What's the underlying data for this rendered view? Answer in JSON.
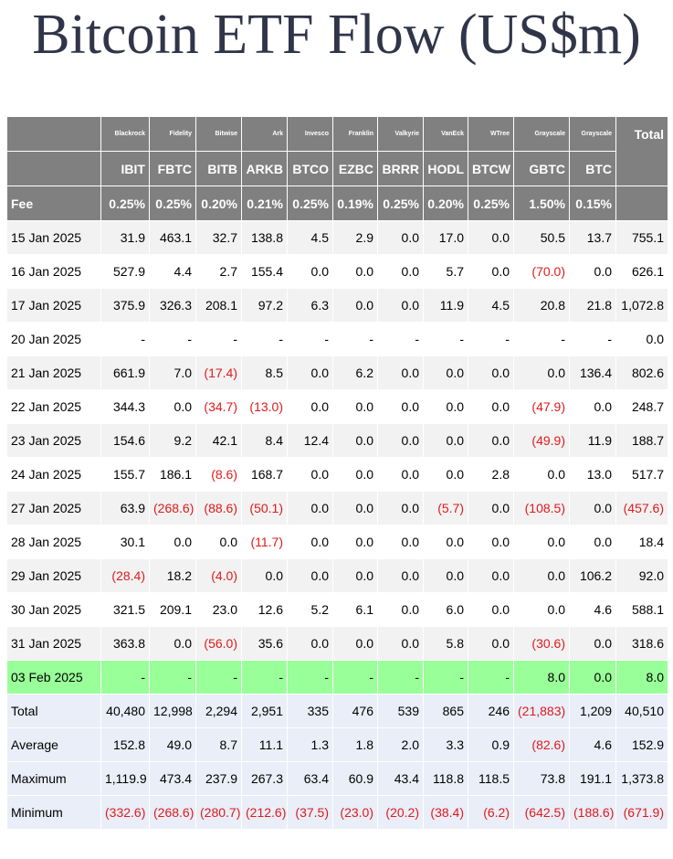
{
  "title": "Bitcoin ETF Flow (US$m)",
  "table": {
    "issuers": [
      "Blackrock",
      "Fidelity",
      "Bitwise",
      "Ark",
      "Invesco",
      "Franklin",
      "Valkyrie",
      "VanEck",
      "WTree",
      "Grayscale",
      "Grayscale"
    ],
    "total_label": "Total",
    "tickers": [
      "IBIT",
      "FBTC",
      "BITB",
      "ARKB",
      "BTCO",
      "EZBC",
      "BRRR",
      "HODL",
      "BTCW",
      "GBTC",
      "BTC"
    ],
    "fee_label": "Fee",
    "fees": [
      "0.25%",
      "0.25%",
      "0.20%",
      "0.21%",
      "0.25%",
      "0.19%",
      "0.25%",
      "0.20%",
      "0.25%",
      "1.50%",
      "0.15%"
    ],
    "rows": [
      [
        "15 Jan 2025",
        "31.9",
        "463.1",
        "32.7",
        "138.8",
        "4.5",
        "2.9",
        "0.0",
        "17.0",
        "0.0",
        "50.5",
        "13.7",
        "755.1"
      ],
      [
        "16 Jan 2025",
        "527.9",
        "4.4",
        "2.7",
        "155.4",
        "0.0",
        "0.0",
        "0.0",
        "5.7",
        "0.0",
        "(70.0)",
        "0.0",
        "626.1"
      ],
      [
        "17 Jan 2025",
        "375.9",
        "326.3",
        "208.1",
        "97.2",
        "6.3",
        "0.0",
        "0.0",
        "11.9",
        "4.5",
        "20.8",
        "21.8",
        "1,072.8"
      ],
      [
        "20 Jan 2025",
        "-",
        "-",
        "-",
        "-",
        "-",
        "-",
        "-",
        "-",
        "-",
        "-",
        "-",
        "0.0"
      ],
      [
        "21 Jan 2025",
        "661.9",
        "7.0",
        "(17.4)",
        "8.5",
        "0.0",
        "6.2",
        "0.0",
        "0.0",
        "0.0",
        "0.0",
        "136.4",
        "802.6"
      ],
      [
        "22 Jan 2025",
        "344.3",
        "0.0",
        "(34.7)",
        "(13.0)",
        "0.0",
        "0.0",
        "0.0",
        "0.0",
        "0.0",
        "(47.9)",
        "0.0",
        "248.7"
      ],
      [
        "23 Jan 2025",
        "154.6",
        "9.2",
        "42.1",
        "8.4",
        "12.4",
        "0.0",
        "0.0",
        "0.0",
        "0.0",
        "(49.9)",
        "11.9",
        "188.7"
      ],
      [
        "24 Jan 2025",
        "155.7",
        "186.1",
        "(8.6)",
        "168.7",
        "0.0",
        "0.0",
        "0.0",
        "0.0",
        "2.8",
        "0.0",
        "13.0",
        "517.7"
      ],
      [
        "27 Jan 2025",
        "63.9",
        "(268.6)",
        "(88.6)",
        "(50.1)",
        "0.0",
        "0.0",
        "0.0",
        "(5.7)",
        "0.0",
        "(108.5)",
        "0.0",
        "(457.6)"
      ],
      [
        "28 Jan 2025",
        "30.1",
        "0.0",
        "0.0",
        "(11.7)",
        "0.0",
        "0.0",
        "0.0",
        "0.0",
        "0.0",
        "0.0",
        "0.0",
        "18.4"
      ],
      [
        "29 Jan 2025",
        "(28.4)",
        "18.2",
        "(4.0)",
        "0.0",
        "0.0",
        "0.0",
        "0.0",
        "0.0",
        "0.0",
        "0.0",
        "106.2",
        "92.0"
      ],
      [
        "30 Jan 2025",
        "321.5",
        "209.1",
        "23.0",
        "12.6",
        "5.2",
        "6.1",
        "0.0",
        "6.0",
        "0.0",
        "0.0",
        "4.6",
        "588.1"
      ],
      [
        "31 Jan 2025",
        "363.8",
        "0.0",
        "(56.0)",
        "35.6",
        "0.0",
        "0.0",
        "0.0",
        "5.8",
        "0.0",
        "(30.6)",
        "0.0",
        "318.6"
      ],
      [
        "03 Feb 2025",
        "-",
        "-",
        "-",
        "-",
        "-",
        "-",
        "-",
        "-",
        "-",
        "8.0",
        "0.0",
        "8.0"
      ]
    ],
    "summary_rows": [
      [
        "Total",
        "40,480",
        "12,998",
        "2,294",
        "2,951",
        "335",
        "476",
        "539",
        "865",
        "246",
        "(21,883)",
        "1,209",
        "40,510"
      ],
      [
        "Average",
        "152.8",
        "49.0",
        "8.7",
        "11.1",
        "1.3",
        "1.8",
        "2.0",
        "3.3",
        "0.9",
        "(82.6)",
        "4.6",
        "152.9"
      ],
      [
        "Maximum",
        "1,119.9",
        "473.4",
        "237.9",
        "267.3",
        "63.4",
        "60.9",
        "43.4",
        "118.8",
        "118.5",
        "73.8",
        "191.1",
        "1,373.8"
      ],
      [
        "Minimum",
        "(332.6)",
        "(268.6)",
        "(280.7)",
        "(212.6)",
        "(37.5)",
        "(23.0)",
        "(20.2)",
        "(38.4)",
        "(6.2)",
        "(642.5)",
        "(188.6)",
        "(671.9)"
      ]
    ]
  }
}
